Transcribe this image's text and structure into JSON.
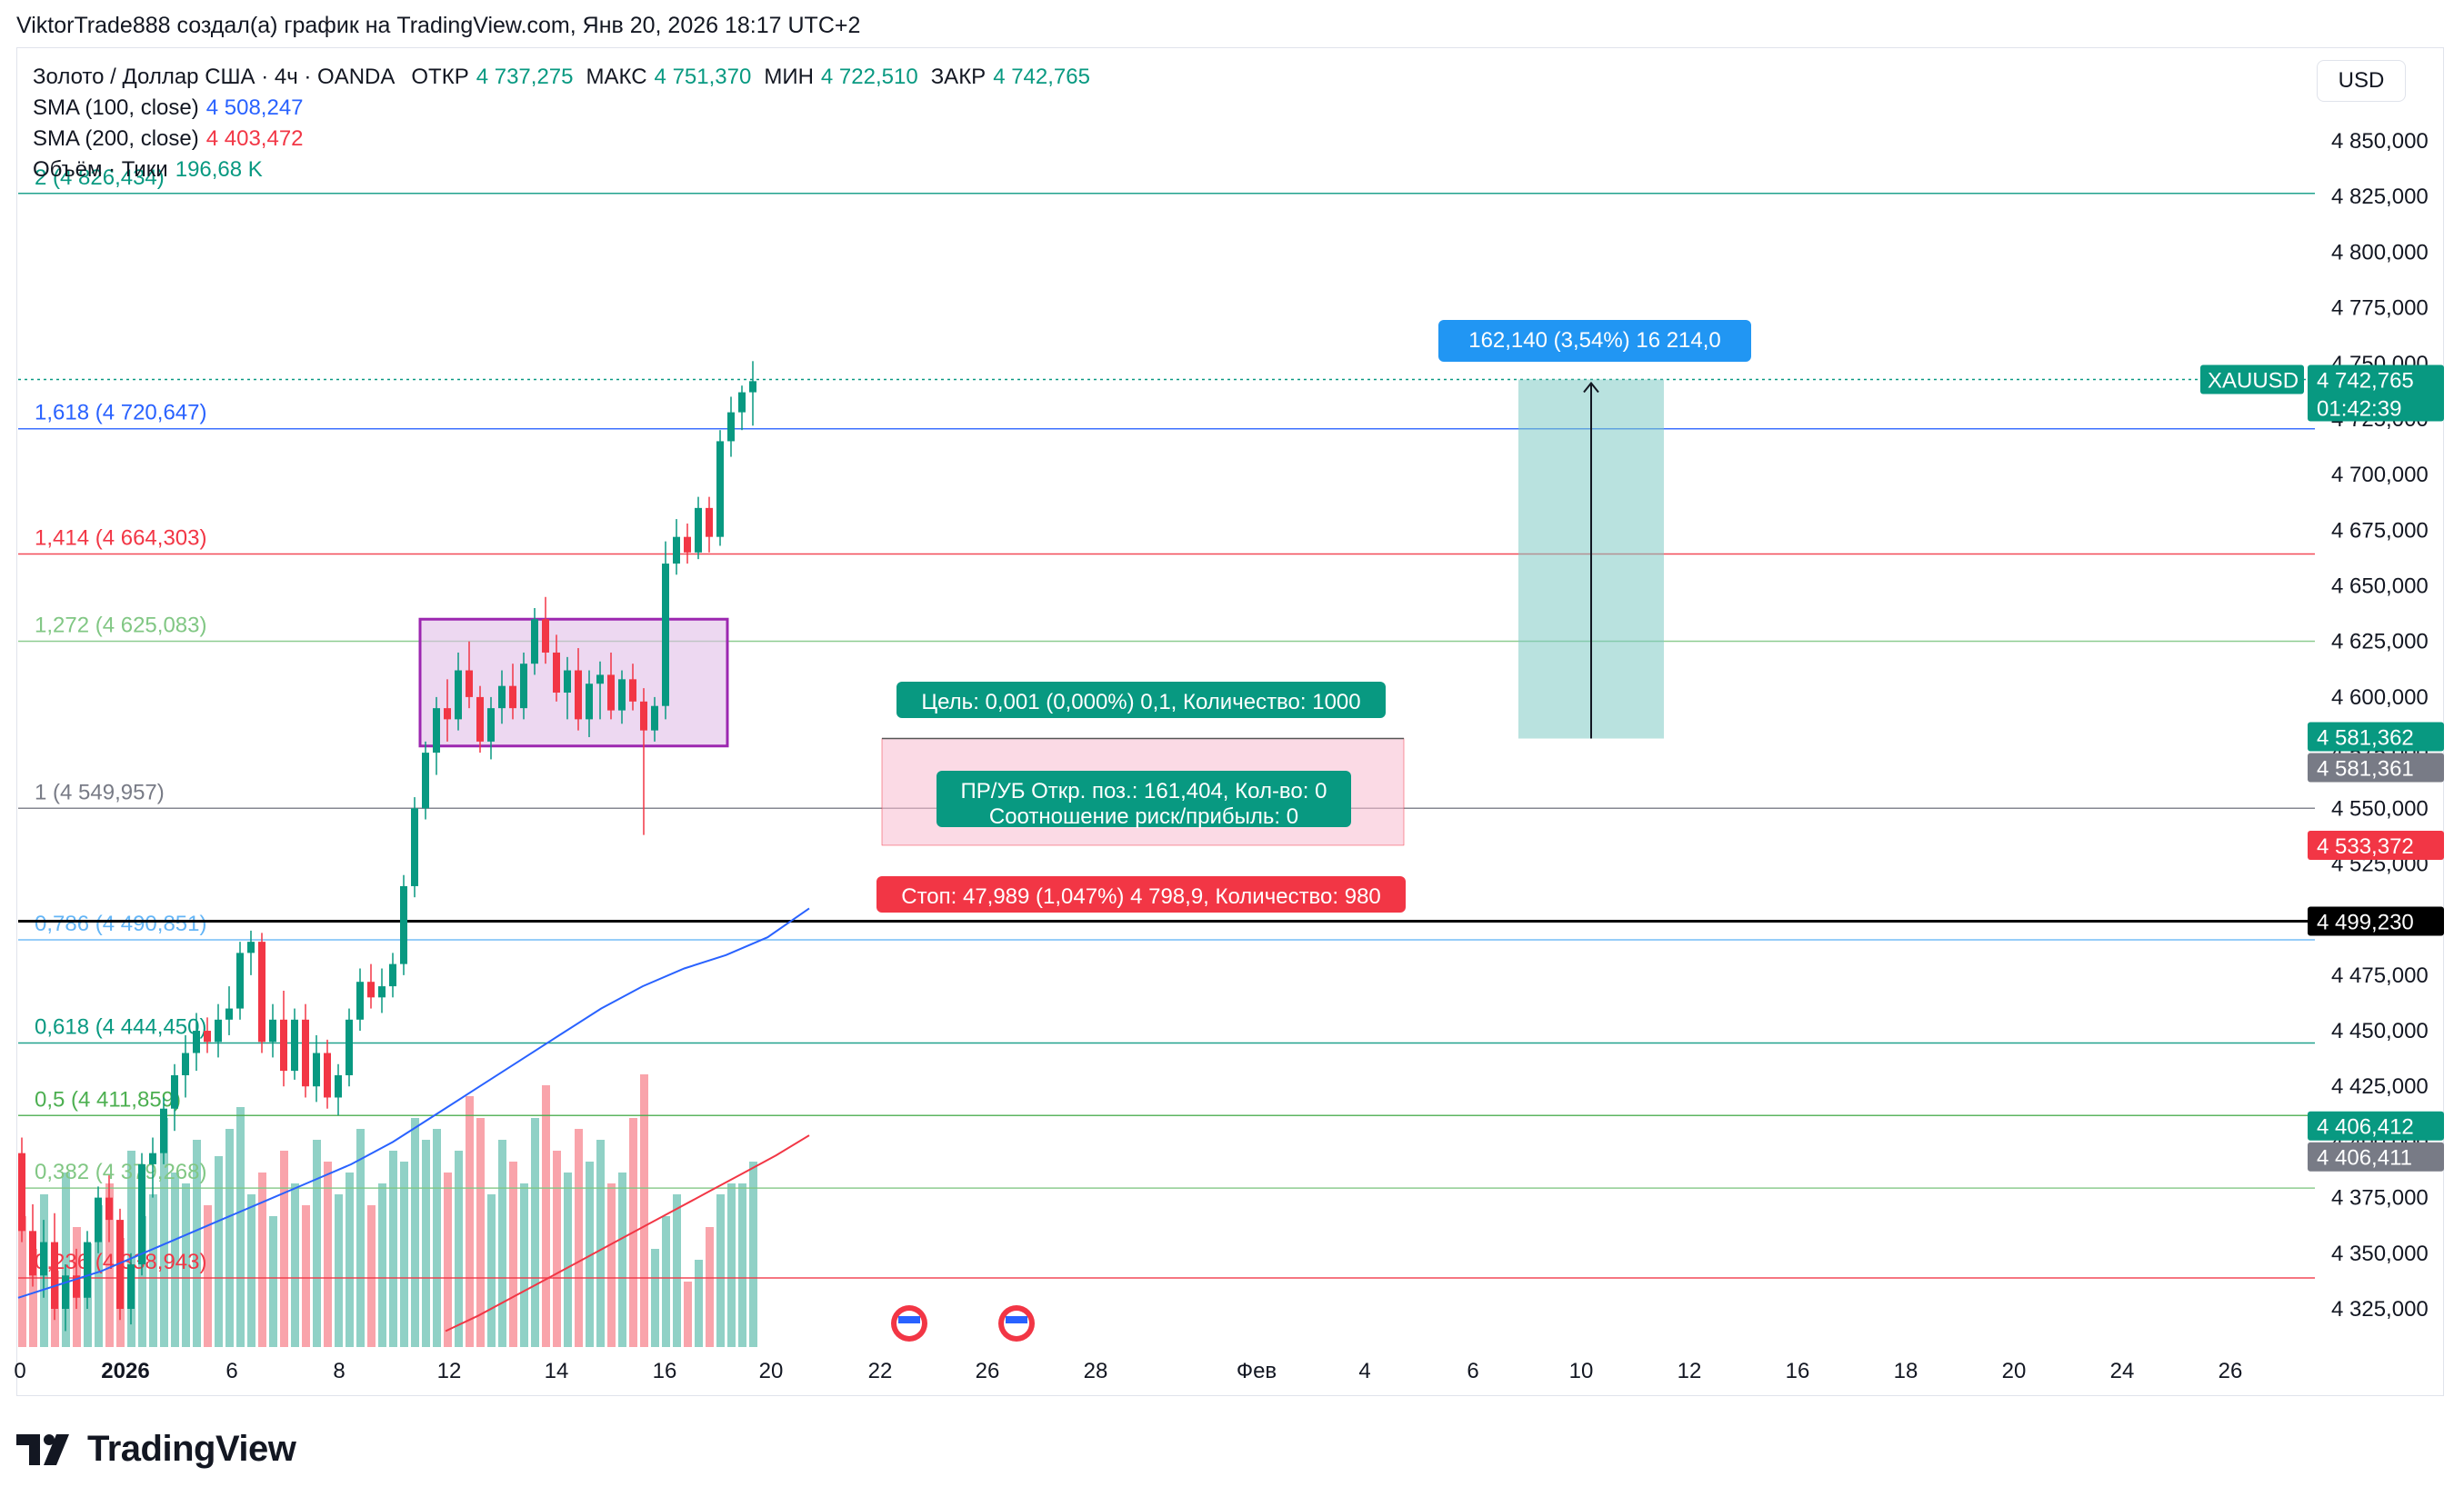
{
  "header": {
    "text": "ViktorTrade888 создал(а) график на TradingView.com, Янв 20, 2026 18:17 UTC+2"
  },
  "legend": {
    "symbol_line": "Золото / Доллар США · 4ч · OANDA",
    "open_label": "ОТКР",
    "open_value": "4 737,275",
    "high_label": "МАКС",
    "high_value": "4 751,370",
    "low_label": "МИН",
    "low_value": "4 722,510",
    "close_label": "ЗАКР",
    "close_value": "4 742,765",
    "sma100_label": "SMA (100, close)",
    "sma100_value": "4 508,247",
    "sma200_label": "SMA (200, close)",
    "sma200_value": "4 403,472",
    "volume_label": "Объём · Тики",
    "volume_value": "196,68 K"
  },
  "currency": "USD",
  "colors": {
    "up": "#089981",
    "down": "#f23645",
    "sma100": "#2962ff",
    "sma200": "#f23645",
    "box": "#9c27b0"
  },
  "price_axis": {
    "ticks": [
      "4 850,000",
      "4 825,000",
      "4 800,000",
      "4 775,000",
      "4 750,000",
      "4 725,000",
      "4 700,000",
      "4 675,000",
      "4 650,000",
      "4 625,000",
      "4 600,000",
      "4 575,000",
      "4 550,000",
      "4 525,000",
      "4 500,000",
      "4 475,000",
      "4 450,000",
      "4 425,000",
      "4 400,000",
      "4 375,000",
      "4 350,000",
      "4 325,000"
    ],
    "labels": {
      "symbol": "XAUUSD",
      "last_price": "4 742,765",
      "countdown": "01:42:39",
      "tp_price": "4 581,362",
      "entry_price": "4 581,361",
      "stop_price": "4 533,372",
      "line_price": "4 499,230",
      "fib_price_a": "4 406,412",
      "fib_price_b": "4 406,411"
    }
  },
  "time_axis": {
    "ticks": [
      "0",
      "2026",
      "6",
      "8",
      "12",
      "14",
      "16",
      "20",
      "22",
      "26",
      "28",
      "Фев",
      "4",
      "6",
      "10",
      "12",
      "16",
      "18",
      "20",
      "24",
      "26"
    ]
  },
  "fib_levels": [
    {
      "label": "2 (4 826,434)",
      "value": 4826.4,
      "color": "#089981"
    },
    {
      "label": "1,618 (4 720,647)",
      "value": 4720.6,
      "color": "#2962ff"
    },
    {
      "label": "1,414 (4 664,303)",
      "value": 4664.3,
      "color": "#f23645"
    },
    {
      "label": "1,272 (4 625,083)",
      "value": 4625.1,
      "color": "#81c784"
    },
    {
      "label": "1 (4 549,957)",
      "value": 4550.0,
      "color": "#787b86"
    },
    {
      "label": "0,786 (4 490,851)",
      "value": 4490.9,
      "color": "#64b5f6"
    },
    {
      "label": "0,618 (4 444,450)",
      "value": 4444.5,
      "color": "#089981"
    },
    {
      "label": "0,5 (4 411,859)",
      "value": 4411.9,
      "color": "#4caf50"
    },
    {
      "label": "0,382 (4 379,268)",
      "value": 4379.3,
      "color": "#81c784"
    },
    {
      "label": "0,236 (4 338,943)",
      "value": 4338.9,
      "color": "#f23645"
    }
  ],
  "annotations": {
    "measure": "162,140 (3,54%) 16 214,0",
    "target": "Цель: 0,001 (0,000%) 0,1, Количество: 1000",
    "pnl_line1": "ПР/УБ Откр. поз.: 161,404, Кол-во: 0",
    "pnl_line2": "Соотношение риск/прибыль: 0",
    "stop": "Стоп: 47,989 (1,047%) 4 798,9, Количество: 980"
  },
  "chart_data": {
    "type": "candlestick",
    "symbol": "XAUUSD",
    "timeframe": "4ч",
    "ylim": [
      4315,
      4860
    ],
    "ohlc": [
      [
        4395,
        4402,
        4355,
        4360
      ],
      [
        4360,
        4372,
        4335,
        4340
      ],
      [
        4340,
        4365,
        4330,
        4355
      ],
      [
        4355,
        4368,
        4320,
        4325
      ],
      [
        4325,
        4345,
        4315,
        4340
      ],
      [
        4340,
        4352,
        4325,
        4330
      ],
      [
        4330,
        4360,
        4325,
        4355
      ],
      [
        4355,
        4380,
        4350,
        4375
      ],
      [
        4375,
        4385,
        4355,
        4365
      ],
      [
        4365,
        4370,
        4320,
        4325
      ],
      [
        4325,
        4350,
        4318,
        4345
      ],
      [
        4345,
        4395,
        4340,
        4390
      ],
      [
        4390,
        4402,
        4375,
        4395
      ],
      [
        4395,
        4420,
        4390,
        4415
      ],
      [
        4415,
        4435,
        4405,
        4430
      ],
      [
        4430,
        4448,
        4420,
        4440
      ],
      [
        4440,
        4458,
        4432,
        4450
      ],
      [
        4450,
        4456,
        4440,
        4445
      ],
      [
        4445,
        4462,
        4438,
        4455
      ],
      [
        4455,
        4470,
        4448,
        4460
      ],
      [
        4460,
        4490,
        4455,
        4485
      ],
      [
        4485,
        4495,
        4475,
        4490
      ],
      [
        4490,
        4494,
        4440,
        4445
      ],
      [
        4445,
        4462,
        4438,
        4455
      ],
      [
        4455,
        4468,
        4425,
        4432
      ],
      [
        4432,
        4460,
        4428,
        4455
      ],
      [
        4455,
        4462,
        4420,
        4425
      ],
      [
        4425,
        4448,
        4418,
        4440
      ],
      [
        4440,
        4446,
        4415,
        4420
      ],
      [
        4420,
        4435,
        4412,
        4430
      ],
      [
        4430,
        4460,
        4425,
        4455
      ],
      [
        4455,
        4478,
        4450,
        4472
      ],
      [
        4472,
        4480,
        4460,
        4465
      ],
      [
        4465,
        4478,
        4458,
        4470
      ],
      [
        4470,
        4485,
        4465,
        4480
      ],
      [
        4480,
        4520,
        4475,
        4515
      ],
      [
        4515,
        4555,
        4510,
        4550
      ],
      [
        4550,
        4580,
        4545,
        4575
      ],
      [
        4575,
        4600,
        4565,
        4595
      ],
      [
        4595,
        4608,
        4580,
        4590
      ],
      [
        4590,
        4620,
        4585,
        4612
      ],
      [
        4612,
        4625,
        4595,
        4600
      ],
      [
        4600,
        4605,
        4575,
        4580
      ],
      [
        4580,
        4600,
        4572,
        4595
      ],
      [
        4595,
        4612,
        4588,
        4605
      ],
      [
        4605,
        4615,
        4590,
        4595
      ],
      [
        4595,
        4620,
        4590,
        4615
      ],
      [
        4615,
        4640,
        4610,
        4635
      ],
      [
        4635,
        4645,
        4615,
        4620
      ],
      [
        4620,
        4628,
        4598,
        4602
      ],
      [
        4602,
        4618,
        4590,
        4612
      ],
      [
        4612,
        4622,
        4585,
        4590
      ],
      [
        4590,
        4612,
        4582,
        4606
      ],
      [
        4606,
        4616,
        4590,
        4610
      ],
      [
        4610,
        4620,
        4590,
        4594
      ],
      [
        4594,
        4612,
        4588,
        4608
      ],
      [
        4608,
        4615,
        4594,
        4598
      ],
      [
        4598,
        4604,
        4538,
        4585
      ],
      [
        4585,
        4600,
        4580,
        4596
      ],
      [
        4596,
        4670,
        4590,
        4660
      ],
      [
        4660,
        4680,
        4655,
        4672
      ],
      [
        4672,
        4678,
        4660,
        4665
      ],
      [
        4665,
        4690,
        4662,
        4685
      ],
      [
        4685,
        4690,
        4665,
        4672
      ],
      [
        4672,
        4720,
        4668,
        4715
      ],
      [
        4715,
        4735,
        4708,
        4728
      ],
      [
        4728,
        4740,
        4720,
        4737
      ],
      [
        4737,
        4751,
        4722,
        4742
      ]
    ],
    "sma100": [
      4330,
      4336,
      4342,
      4350,
      4358,
      4366,
      4374,
      4382,
      4390,
      4400,
      4412,
      4424,
      4436,
      4448,
      4460,
      4470,
      4478,
      4484,
      4492,
      4505
    ],
    "sma200": [
      4315,
      4322,
      4330,
      4338,
      4346,
      4354,
      4362,
      4370,
      4378,
      4386,
      4394,
      4403
    ],
    "position": {
      "entry": 4581.361,
      "target": 4581.362,
      "stop": 4533.372
    },
    "measure_range": [
      4581.362,
      4742.765
    ],
    "horizontal_line": 4499.23
  }
}
